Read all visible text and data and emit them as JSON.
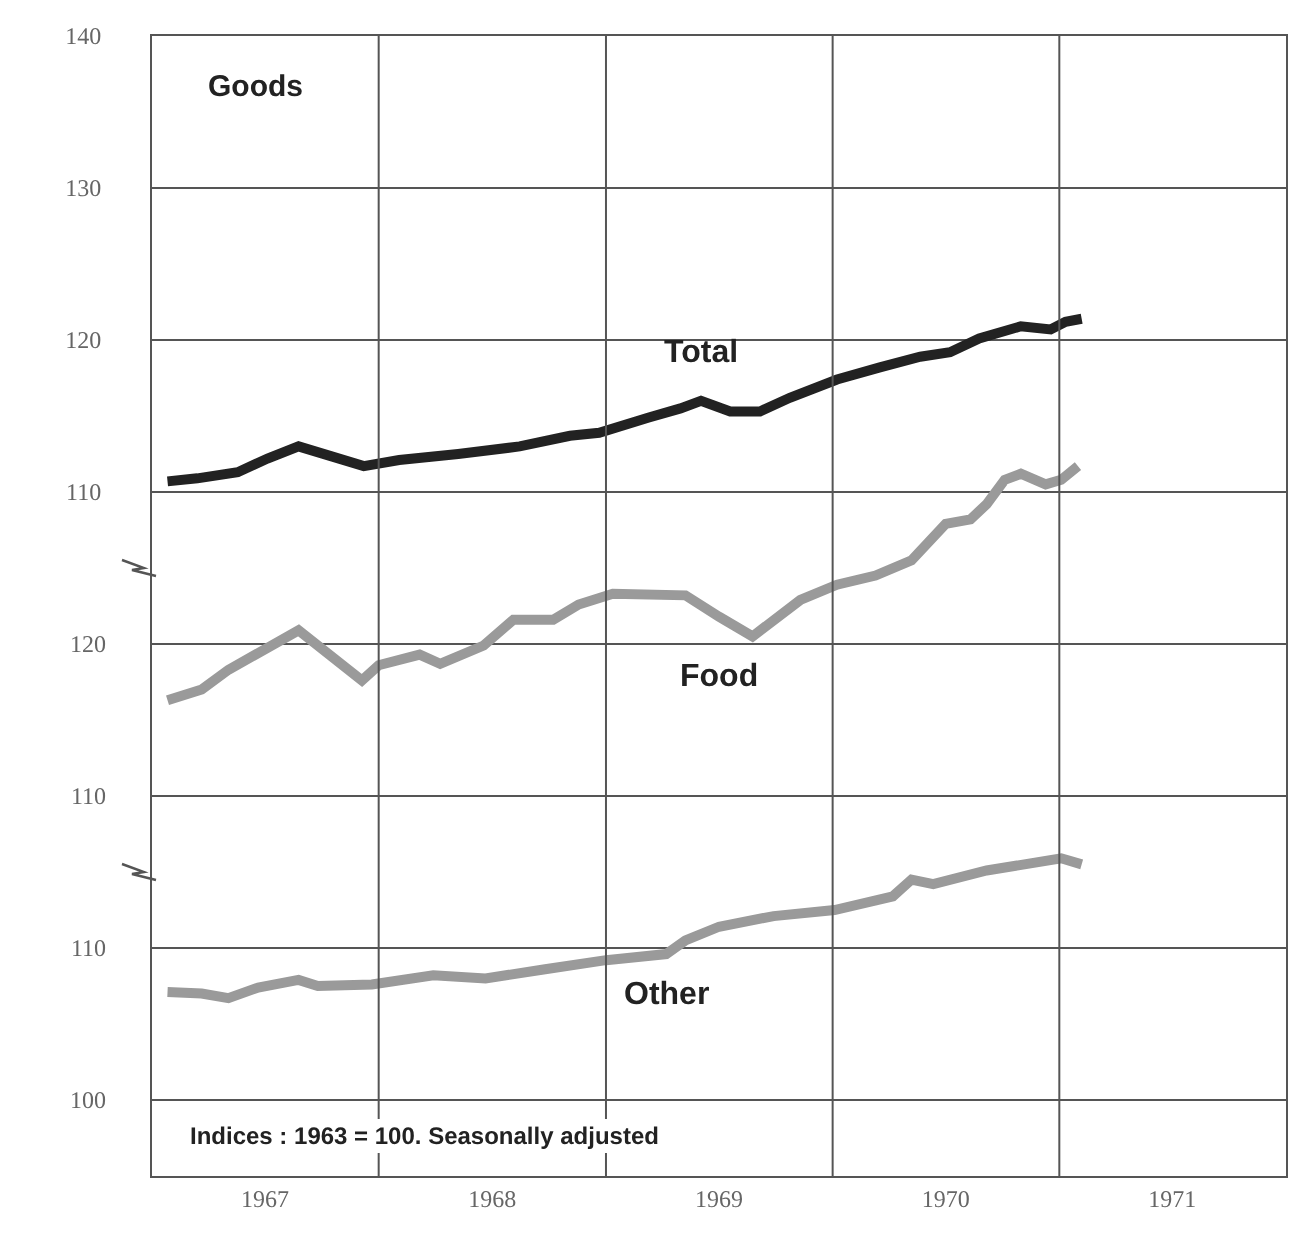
{
  "chart_data": {
    "type": "line",
    "title": "Goods",
    "xlim": [
      "1967-01-01",
      "1972-01-01"
    ],
    "xticks": [
      {
        "value": "1967-07-02",
        "label": "1967"
      },
      {
        "value": "1968-01-01",
        "label": null
      },
      {
        "value": "1968-07-02",
        "label": "1968"
      },
      {
        "value": "1969-01-01",
        "label": null
      },
      {
        "value": "1969-07-02",
        "label": "1969"
      },
      {
        "value": "1970-01-01",
        "label": null
      },
      {
        "value": "1970-07-02",
        "label": "1970"
      },
      {
        "value": "1971-01-01",
        "label": null
      },
      {
        "value": "1971-07-02",
        "label": "1971"
      }
    ],
    "ylim": [
      65,
      140
    ],
    "yticks": [
      110,
      120,
      130,
      140
    ],
    "y2lim": [
      85,
      160
    ],
    "y2ticks": [
      110,
      120
    ],
    "y3lim": [
      95,
      170
    ],
    "y3ticks": [
      100,
      110
    ],
    "grid": true,
    "legend": false,
    "series": [
      {
        "name": "Total",
        "color": "#222222",
        "axis": "y",
        "x": [
          "1967-01-26",
          "1967-03-15",
          "1967-05-19",
          "1967-07-06",
          "1967-08-25",
          "1967-12-08",
          "1968-02-03",
          "1968-05-08",
          "1968-08-15",
          "1968-11-04",
          "1968-12-21",
          "1969-03-11",
          "1969-05-01",
          "1969-06-03",
          "1969-07-20",
          "1969-09-06",
          "1969-10-24",
          "1970-01-08",
          "1970-03-18",
          "1970-05-22",
          "1970-07-09",
          "1970-08-25",
          "1970-10-31",
          "1970-12-18",
          "1971-01-11",
          "1971-02-06"
        ],
        "values": [
          110.7,
          110.9,
          111.3,
          112.2,
          113.0,
          111.7,
          112.1,
          112.5,
          113.0,
          113.7,
          113.9,
          114.9,
          115.5,
          116.0,
          115.3,
          115.3,
          116.2,
          117.4,
          118.2,
          118.9,
          119.2,
          120.1,
          120.9,
          120.7,
          121.2,
          121.4
        ]
      },
      {
        "name": "Food",
        "color": "#9a9a9a",
        "axis": "y2",
        "x": [
          "1967-01-26",
          "1967-03-22",
          "1967-05-04",
          "1967-08-25",
          "1967-12-05",
          "1968-01-01",
          "1968-03-07",
          "1968-04-09",
          "1968-06-18",
          "1968-08-05",
          "1968-10-08",
          "1968-11-18",
          "1969-01-12",
          "1969-05-09",
          "1969-07-02",
          "1969-08-25",
          "1969-11-10",
          "1970-01-08",
          "1970-03-11",
          "1970-05-08",
          "1970-07-02",
          "1970-08-11",
          "1970-09-06",
          "1970-10-05",
          "1970-10-31",
          "1970-12-10",
          "1971-01-04",
          "1971-01-31"
        ],
        "values": [
          116.3,
          117.0,
          118.3,
          120.9,
          117.6,
          118.6,
          119.3,
          118.7,
          119.9,
          121.6,
          121.6,
          122.6,
          123.3,
          123.2,
          121.8,
          120.5,
          122.9,
          123.9,
          124.5,
          125.5,
          127.9,
          128.2,
          129.2,
          130.8,
          131.2,
          130.5,
          130.8,
          131.7
        ]
      },
      {
        "name": "Other",
        "color": "#9a9a9a",
        "axis": "y3",
        "x": [
          "1967-01-26",
          "1967-03-22",
          "1967-05-04",
          "1967-06-21",
          "1967-08-25",
          "1967-09-25",
          "1967-12-21",
          "1968-03-29",
          "1968-06-21",
          "1968-09-25",
          "1969-01-01",
          "1969-04-08",
          "1969-05-09",
          "1969-07-02",
          "1969-09-28",
          "1970-01-04",
          "1970-04-08",
          "1970-05-08",
          "1970-06-12",
          "1970-09-06",
          "1971-01-04",
          "1971-02-06"
        ],
        "values": [
          107.1,
          107.0,
          106.7,
          107.4,
          107.9,
          107.5,
          107.6,
          108.2,
          108.0,
          108.6,
          109.2,
          109.6,
          110.5,
          111.4,
          112.1,
          112.5,
          113.4,
          114.5,
          114.2,
          115.1,
          115.9,
          115.5
        ]
      }
    ],
    "annotations": [
      "Indices : 1963 = 100. Seasonally adjusted"
    ]
  }
}
